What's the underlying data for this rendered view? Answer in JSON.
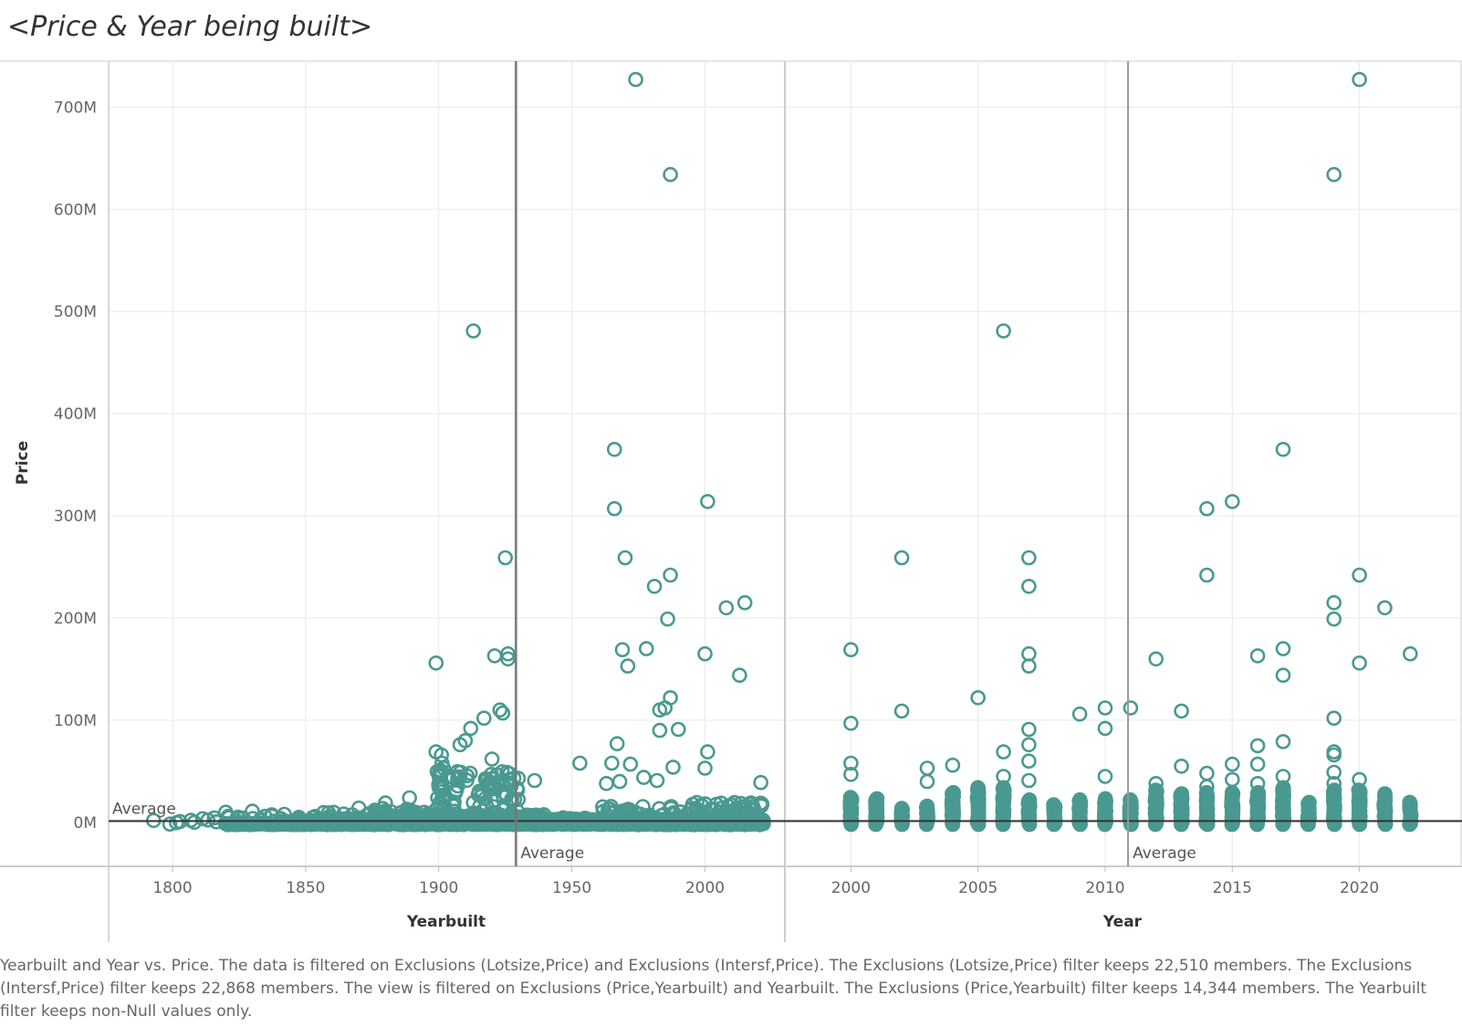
{
  "title": "<Price & Year being built>",
  "caption": "Yearbuilt and Year vs. Price. The data is filtered on Exclusions (Lotsize,Price) and Exclusions (Intersf,Price). The Exclusions (Lotsize,Price) filter keeps 22,510 members. The Exclusions (Intersf,Price) filter keeps 22,868 members. The view is filtered on Exclusions (Price,Yearbuilt) and Yearbuilt. The Exclusions (Price,Yearbuilt) filter keeps 14,344 members. The Yearbuilt filter keeps non-Null values only.",
  "colors": {
    "marker": "#4a9990",
    "grid": "#ececec",
    "refline": "#777777",
    "avgline": "#333333"
  },
  "chart_data": {
    "type": "scatter",
    "ylabel": "Price",
    "yticks": [
      "0M",
      "100M",
      "200M",
      "300M",
      "400M",
      "500M",
      "600M",
      "700M"
    ],
    "ylim": [
      -43,
      745
    ],
    "y_unit": "M",
    "y_reference": {
      "label": "Average",
      "value": 1.3
    },
    "panels": [
      {
        "xlabel": "Yearbuilt",
        "xticks": [
          "1800",
          "1850",
          "1900",
          "1950",
          "2000"
        ],
        "xlim": [
          1776,
          2030
        ],
        "x_reference": {
          "label": "Average",
          "value": 1929
        },
        "highlights": [
          [
            1974,
            727
          ],
          [
            1987,
            634
          ],
          [
            1913,
            481
          ],
          [
            1966,
            365
          ],
          [
            2001,
            314
          ],
          [
            1966,
            307
          ],
          [
            1925,
            259
          ],
          [
            1970,
            259
          ],
          [
            1987,
            242
          ],
          [
            1981,
            231
          ],
          [
            2015,
            215
          ],
          [
            2008,
            210
          ],
          [
            1986,
            199
          ],
          [
            1978,
            170
          ],
          [
            1969,
            169
          ],
          [
            1926,
            165
          ],
          [
            1921,
            163
          ],
          [
            2000,
            165
          ],
          [
            1926,
            160
          ],
          [
            1899,
            156
          ],
          [
            1971,
            153
          ],
          [
            2013,
            144
          ],
          [
            1987,
            122
          ],
          [
            1983,
            110
          ],
          [
            1985,
            112
          ],
          [
            1923,
            110
          ],
          [
            1924,
            107
          ],
          [
            1917,
            102
          ],
          [
            1912,
            92
          ],
          [
            1983,
            90
          ],
          [
            1990,
            91
          ],
          [
            1910,
            80
          ],
          [
            1908,
            76
          ],
          [
            1967,
            77
          ],
          [
            2001,
            69
          ],
          [
            1899,
            69
          ],
          [
            1901,
            66
          ],
          [
            1953,
            58
          ],
          [
            1972,
            57
          ],
          [
            1988,
            54
          ],
          [
            2000,
            53
          ],
          [
            1920,
            62
          ],
          [
            1965,
            58
          ],
          [
            1977,
            44
          ],
          [
            1982,
            41
          ],
          [
            1963,
            38
          ],
          [
            1968,
            40
          ],
          [
            1936,
            41
          ],
          [
            2021,
            39
          ],
          [
            1889,
            24
          ],
          [
            1880,
            19
          ],
          [
            1870,
            14
          ],
          [
            1820,
            10
          ],
          [
            1830,
            11
          ]
        ],
        "density": [
          {
            "x": [
              1790,
              1800
            ],
            "y": [
              -2,
              2
            ],
            "n": 2
          },
          {
            "x": [
              1800,
              1825
            ],
            "y": [
              -2,
              8
            ],
            "n": 12
          },
          {
            "x": [
              1825,
              1850
            ],
            "y": [
              -2,
              8
            ],
            "n": 20
          },
          {
            "x": [
              1850,
              1875
            ],
            "y": [
              -2,
              10
            ],
            "n": 30
          },
          {
            "x": [
              1875,
              1898
            ],
            "y": [
              -2,
              14
            ],
            "n": 40
          },
          {
            "x": [
              1899,
              1903
            ],
            "y": [
              -2,
              60
            ],
            "n": 35
          },
          {
            "x": [
              1903,
              1930
            ],
            "y": [
              -2,
              50
            ],
            "n": 90
          },
          {
            "x": [
              1930,
              1960
            ],
            "y": [
              -2,
              8
            ],
            "n": 25
          },
          {
            "x": [
              1960,
              1995
            ],
            "y": [
              -2,
              16
            ],
            "n": 60
          },
          {
            "x": [
              1995,
              2022
            ],
            "y": [
              -2,
              20
            ],
            "n": 55
          }
        ],
        "fill_rows": [
          {
            "x": [
              1820,
              2022
            ],
            "y": -1.5
          },
          {
            "x": [
              1840,
              2022
            ],
            "y": 0.5
          },
          {
            "x": [
              1860,
              2022
            ],
            "y": 2.5
          },
          {
            "x": [
              1880,
              1935
            ],
            "y": 5
          }
        ]
      },
      {
        "xlabel": "Year",
        "xticks": [
          "2000",
          "2005",
          "2010",
          "2015",
          "2020"
        ],
        "xlim": [
          1997.4,
          2024
        ],
        "x_reference": {
          "label": "Average",
          "value": 2010.9
        },
        "highlights": [
          [
            2000,
            169
          ],
          [
            2000,
            97
          ],
          [
            2000,
            58
          ],
          [
            2000,
            47
          ],
          [
            2002,
            259
          ],
          [
            2002,
            109
          ],
          [
            2003,
            53
          ],
          [
            2003,
            40
          ],
          [
            2004,
            56
          ],
          [
            2005,
            122
          ],
          [
            2006,
            481
          ],
          [
            2006,
            69
          ],
          [
            2006,
            45
          ],
          [
            2007,
            259
          ],
          [
            2007,
            231
          ],
          [
            2007,
            165
          ],
          [
            2007,
            153
          ],
          [
            2007,
            91
          ],
          [
            2007,
            76
          ],
          [
            2007,
            60
          ],
          [
            2007,
            41
          ],
          [
            2009,
            106
          ],
          [
            2010,
            112
          ],
          [
            2010,
            92
          ],
          [
            2010,
            45
          ],
          [
            2011,
            112
          ],
          [
            2012,
            160
          ],
          [
            2012,
            38
          ],
          [
            2013,
            109
          ],
          [
            2013,
            55
          ],
          [
            2014,
            307
          ],
          [
            2014,
            242
          ],
          [
            2014,
            48
          ],
          [
            2014,
            35
          ],
          [
            2015,
            314
          ],
          [
            2015,
            57
          ],
          [
            2015,
            42
          ],
          [
            2016,
            163
          ],
          [
            2016,
            75
          ],
          [
            2016,
            57
          ],
          [
            2016,
            38
          ],
          [
            2017,
            365
          ],
          [
            2017,
            170
          ],
          [
            2017,
            144
          ],
          [
            2017,
            79
          ],
          [
            2017,
            45
          ],
          [
            2019,
            634
          ],
          [
            2019,
            215
          ],
          [
            2019,
            199
          ],
          [
            2019,
            102
          ],
          [
            2019,
            69
          ],
          [
            2019,
            66
          ],
          [
            2019,
            49
          ],
          [
            2019,
            38
          ],
          [
            2020,
            727
          ],
          [
            2020,
            242
          ],
          [
            2020,
            156
          ],
          [
            2020,
            42
          ],
          [
            2021,
            210
          ],
          [
            2021,
            26
          ],
          [
            2022,
            165
          ],
          [
            2022,
            18
          ]
        ],
        "columns": [
          {
            "x": 2000,
            "top": 25
          },
          {
            "x": 2001,
            "top": 24
          },
          {
            "x": 2002,
            "top": 14
          },
          {
            "x": 2003,
            "top": 16
          },
          {
            "x": 2004,
            "top": 30
          },
          {
            "x": 2005,
            "top": 35
          },
          {
            "x": 2006,
            "top": 35
          },
          {
            "x": 2007,
            "top": 22
          },
          {
            "x": 2008,
            "top": 18
          },
          {
            "x": 2009,
            "top": 22
          },
          {
            "x": 2010,
            "top": 24
          },
          {
            "x": 2011,
            "top": 22
          },
          {
            "x": 2012,
            "top": 32
          },
          {
            "x": 2013,
            "top": 28
          },
          {
            "x": 2014,
            "top": 30
          },
          {
            "x": 2015,
            "top": 30
          },
          {
            "x": 2016,
            "top": 30
          },
          {
            "x": 2017,
            "top": 35
          },
          {
            "x": 2018,
            "top": 20
          },
          {
            "x": 2019,
            "top": 32
          },
          {
            "x": 2020,
            "top": 32
          },
          {
            "x": 2021,
            "top": 28
          },
          {
            "x": 2022,
            "top": 20
          }
        ]
      }
    ]
  }
}
